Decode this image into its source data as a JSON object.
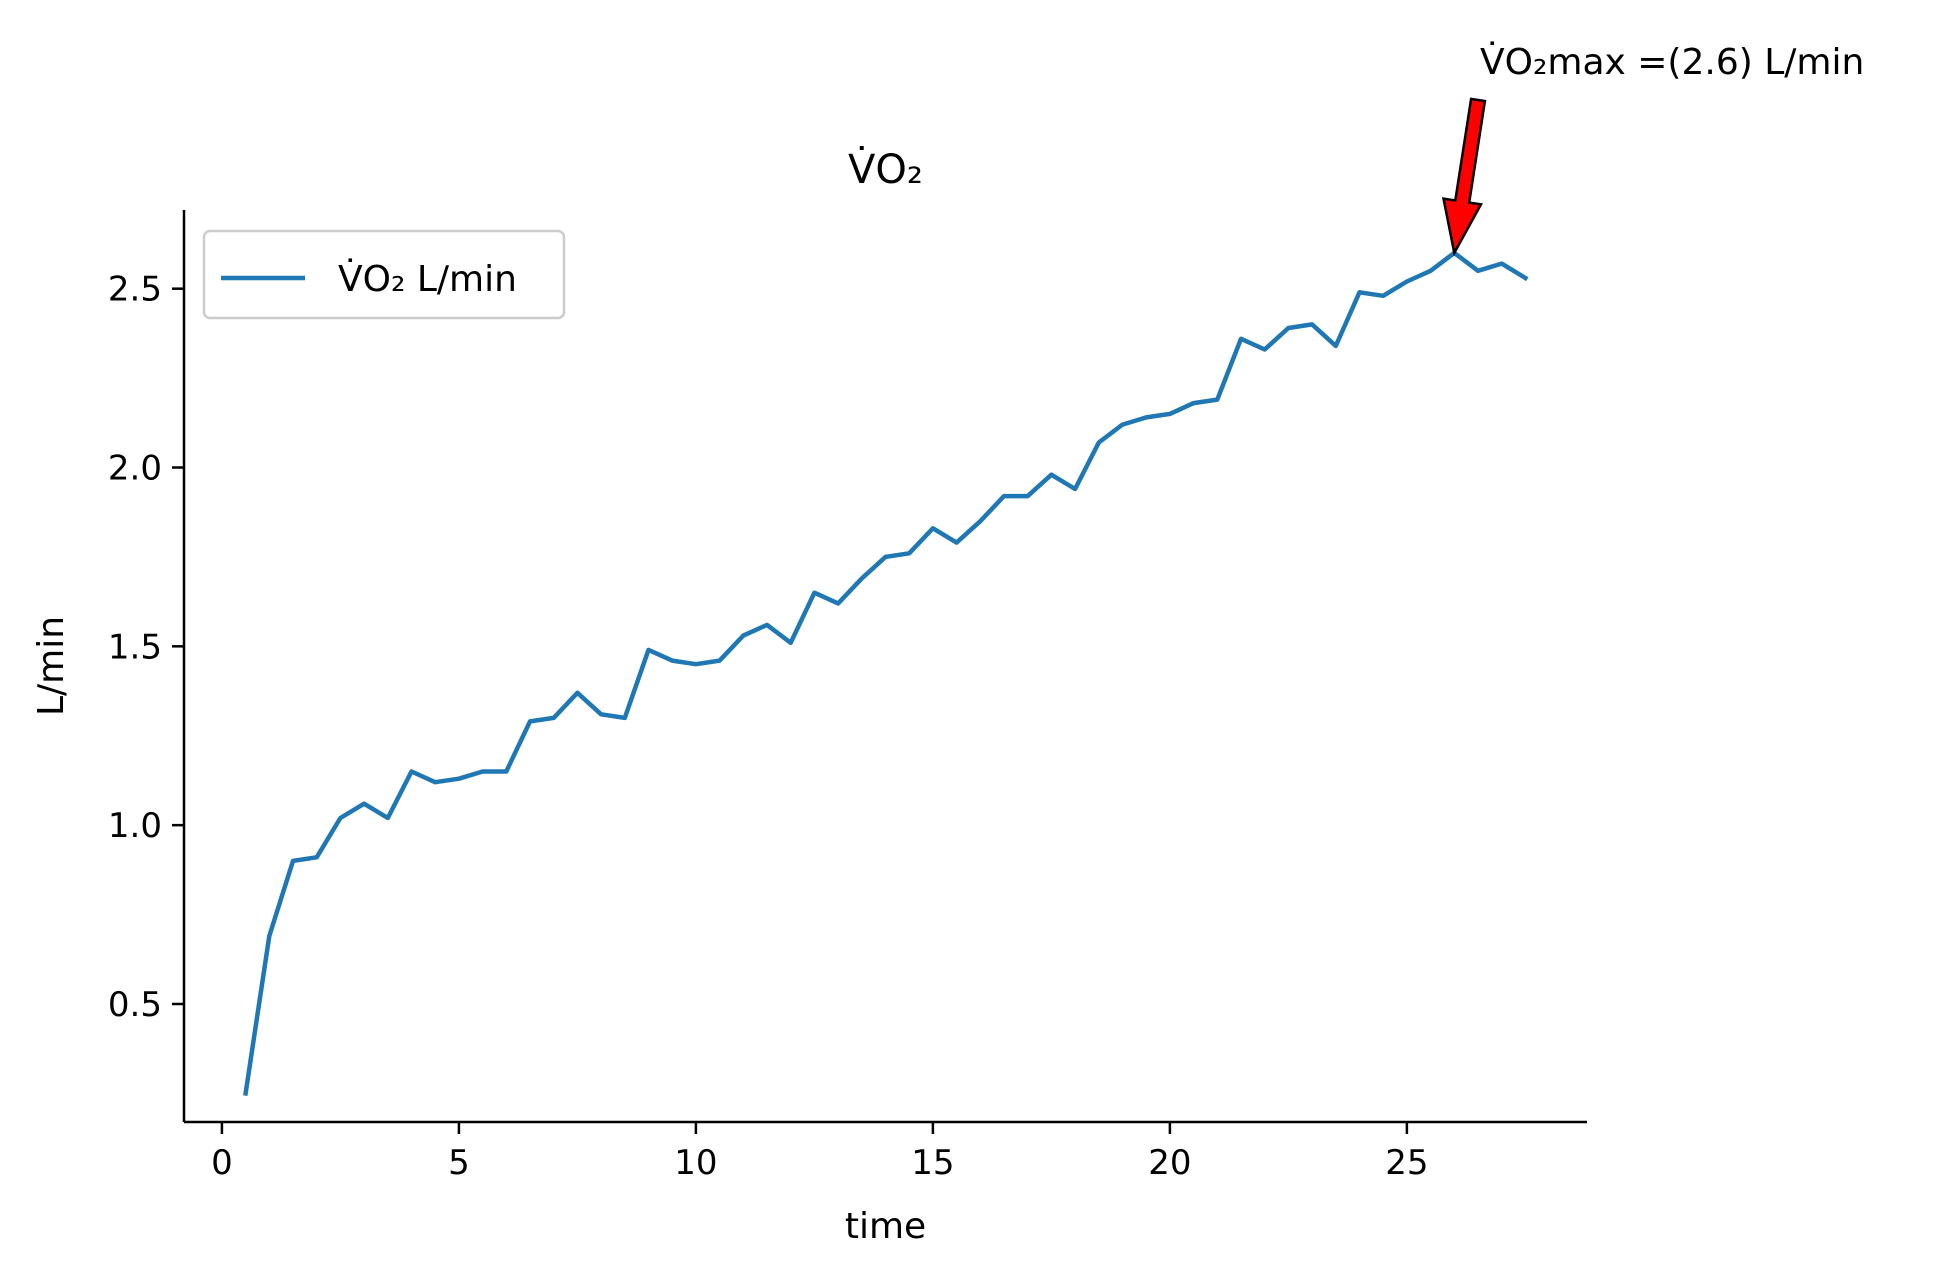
{
  "chart_data": {
    "type": "line",
    "title": "V̇O₂",
    "xlabel": "time",
    "ylabel": "L/min",
    "xlim": [
      -0.8,
      28.8
    ],
    "ylim": [
      0.17,
      2.72
    ],
    "xticks": [
      0,
      5,
      10,
      15,
      20,
      25
    ],
    "xtick_labels": [
      "0",
      "5",
      "10",
      "15",
      "20",
      "25"
    ],
    "yticks": [
      0.5,
      1.0,
      1.5,
      2.0,
      2.5
    ],
    "ytick_labels": [
      "0.5",
      "1.0",
      "1.5",
      "2.0",
      "2.5"
    ],
    "grid": false,
    "legend_position": "top-left",
    "series": [
      {
        "name": "V̇O₂ L/min",
        "color": "#1f77b4",
        "x": [
          0.5,
          1.0,
          1.5,
          2.0,
          2.5,
          3.0,
          3.5,
          4.0,
          4.5,
          5.0,
          5.5,
          6.0,
          6.5,
          7.0,
          7.5,
          8.0,
          8.5,
          9.0,
          9.5,
          10.0,
          10.5,
          11.0,
          11.5,
          12.0,
          12.5,
          13.0,
          13.5,
          14.0,
          14.5,
          15.0,
          15.5,
          16.0,
          16.5,
          17.0,
          17.5,
          18.0,
          18.5,
          19.0,
          19.5,
          20.0,
          20.5,
          21.0,
          21.5,
          22.0,
          22.5,
          23.0,
          23.5,
          24.0,
          24.5,
          25.0,
          25.5,
          26.0,
          26.5,
          27.0,
          27.5
        ],
        "y": [
          0.25,
          0.69,
          0.9,
          0.91,
          1.02,
          1.06,
          1.02,
          1.15,
          1.12,
          1.13,
          1.15,
          1.15,
          1.29,
          1.3,
          1.37,
          1.31,
          1.3,
          1.49,
          1.46,
          1.45,
          1.46,
          1.53,
          1.56,
          1.51,
          1.65,
          1.62,
          1.69,
          1.75,
          1.76,
          1.83,
          1.79,
          1.85,
          1.92,
          1.92,
          1.98,
          1.94,
          2.07,
          2.12,
          2.14,
          2.15,
          2.18,
          2.19,
          2.36,
          2.33,
          2.39,
          2.4,
          2.34,
          2.49,
          2.48,
          2.52,
          2.55,
          2.6,
          2.55,
          2.57,
          2.53
        ]
      }
    ],
    "annotations": [
      {
        "text": "V̇O₂max =(2.6) L/min",
        "x": 26.0,
        "y": 2.6,
        "arrow_color": "#ff0000"
      }
    ]
  }
}
